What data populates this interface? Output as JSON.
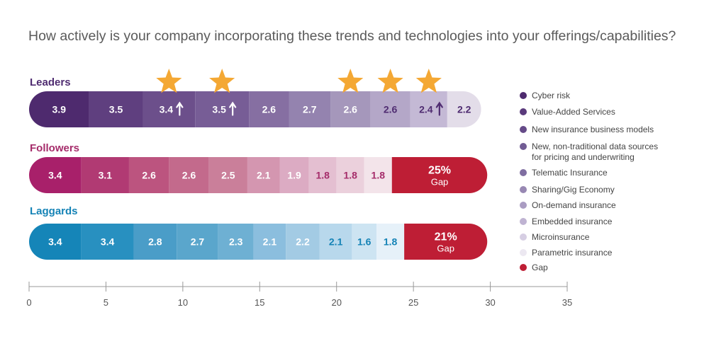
{
  "chart_data": {
    "type": "bar",
    "orientation": "horizontal",
    "stacked": true,
    "title": "How actively is your company incorporating these trends and technologies into your offerings/capabilities?",
    "xlabel": "",
    "ylabel": "",
    "xlim": [
      0,
      35
    ],
    "x_ticks": [
      0,
      5,
      10,
      15,
      20,
      25,
      30,
      35
    ],
    "grid": false,
    "legend_position": "right",
    "categories": [
      "Leaders",
      "Followers",
      "Laggards"
    ],
    "series": [
      {
        "name": "Cyber risk",
        "values": [
          3.9,
          3.4,
          3.4
        ]
      },
      {
        "name": "Value-Added Services",
        "values": [
          3.5,
          3.1,
          3.4
        ]
      },
      {
        "name": "New insurance business models",
        "values": [
          3.4,
          2.6,
          2.8
        ]
      },
      {
        "name": "New, non-traditional data sources for pricing and underwriting",
        "values": [
          3.5,
          2.6,
          2.7
        ]
      },
      {
        "name": "Telematic Insurance",
        "values": [
          2.6,
          2.5,
          2.3
        ]
      },
      {
        "name": "Sharing/Gig Economy",
        "values": [
          2.7,
          2.1,
          2.1
        ]
      },
      {
        "name": "On-demand insurance",
        "values": [
          2.6,
          1.9,
          2.2
        ]
      },
      {
        "name": "Embedded insurance",
        "values": [
          2.6,
          1.8,
          2.1
        ]
      },
      {
        "name": "Microinsurance",
        "values": [
          2.4,
          1.8,
          1.6
        ]
      },
      {
        "name": "Parametric insurance",
        "values": [
          2.2,
          1.8,
          1.8
        ]
      },
      {
        "name": "Gap",
        "values": [
          null,
          6.2,
          5.4
        ]
      }
    ],
    "segment_labels": [
      [
        "3.9",
        "3.5",
        "3.4",
        "3.5",
        "2.6",
        "2.7",
        "2.6",
        "2.6",
        "2.4",
        "2.2"
      ],
      [
        "3.4",
        "3.1",
        "2.6",
        "2.6",
        "2.5",
        "2.1",
        "1.9",
        "1.8",
        "1.8",
        "1.8"
      ],
      [
        "3.4",
        "3.4",
        "2.8",
        "2.7",
        "2.3",
        "2.1",
        "2.2",
        "2.1",
        "1.6",
        "1.8"
      ]
    ],
    "gap_labels": [
      "",
      "25%",
      "21%"
    ],
    "gap_text": "Gap",
    "stars": [
      2,
      3,
      6,
      7,
      8
    ],
    "up_arrows": [
      2,
      3,
      8
    ],
    "group_colors": [
      "#4f2c71",
      "#a52c6a",
      "#1583b6"
    ],
    "legend_colors": [
      "#4e2a6e",
      "#5a3a7c",
      "#654a88",
      "#715c94",
      "#7f6ea1",
      "#9888b3",
      "#aa9cc2",
      "#bfb3d2",
      "#d6cee3",
      "#ece8f1",
      "#be1e35"
    ],
    "palettes": [
      [
        "#4e2a6e",
        "#5f3f7f",
        "#6c4f8b",
        "#775d96",
        "#866fa2",
        "#9483af",
        "#a597bb",
        "#b4a7c8",
        "#c4b9d5",
        "#e3dde9"
      ],
      [
        "#a8206a",
        "#b13a73",
        "#bc547f",
        "#c36a8c",
        "#ca7f9a",
        "#d496b0",
        "#dcabc3",
        "#e4bfd1",
        "#ebd0dc",
        "#f3e4ea"
      ],
      [
        "#1585b8",
        "#2890c0",
        "#4a9dc8",
        "#5aa6cc",
        "#6eb0d3",
        "#8bbede",
        "#a3cbe4",
        "#b8d8ec",
        "#cde4f2",
        "#e6f1f9"
      ]
    ],
    "gap_color": "#be1e35",
    "star_color": "#f4a834"
  }
}
